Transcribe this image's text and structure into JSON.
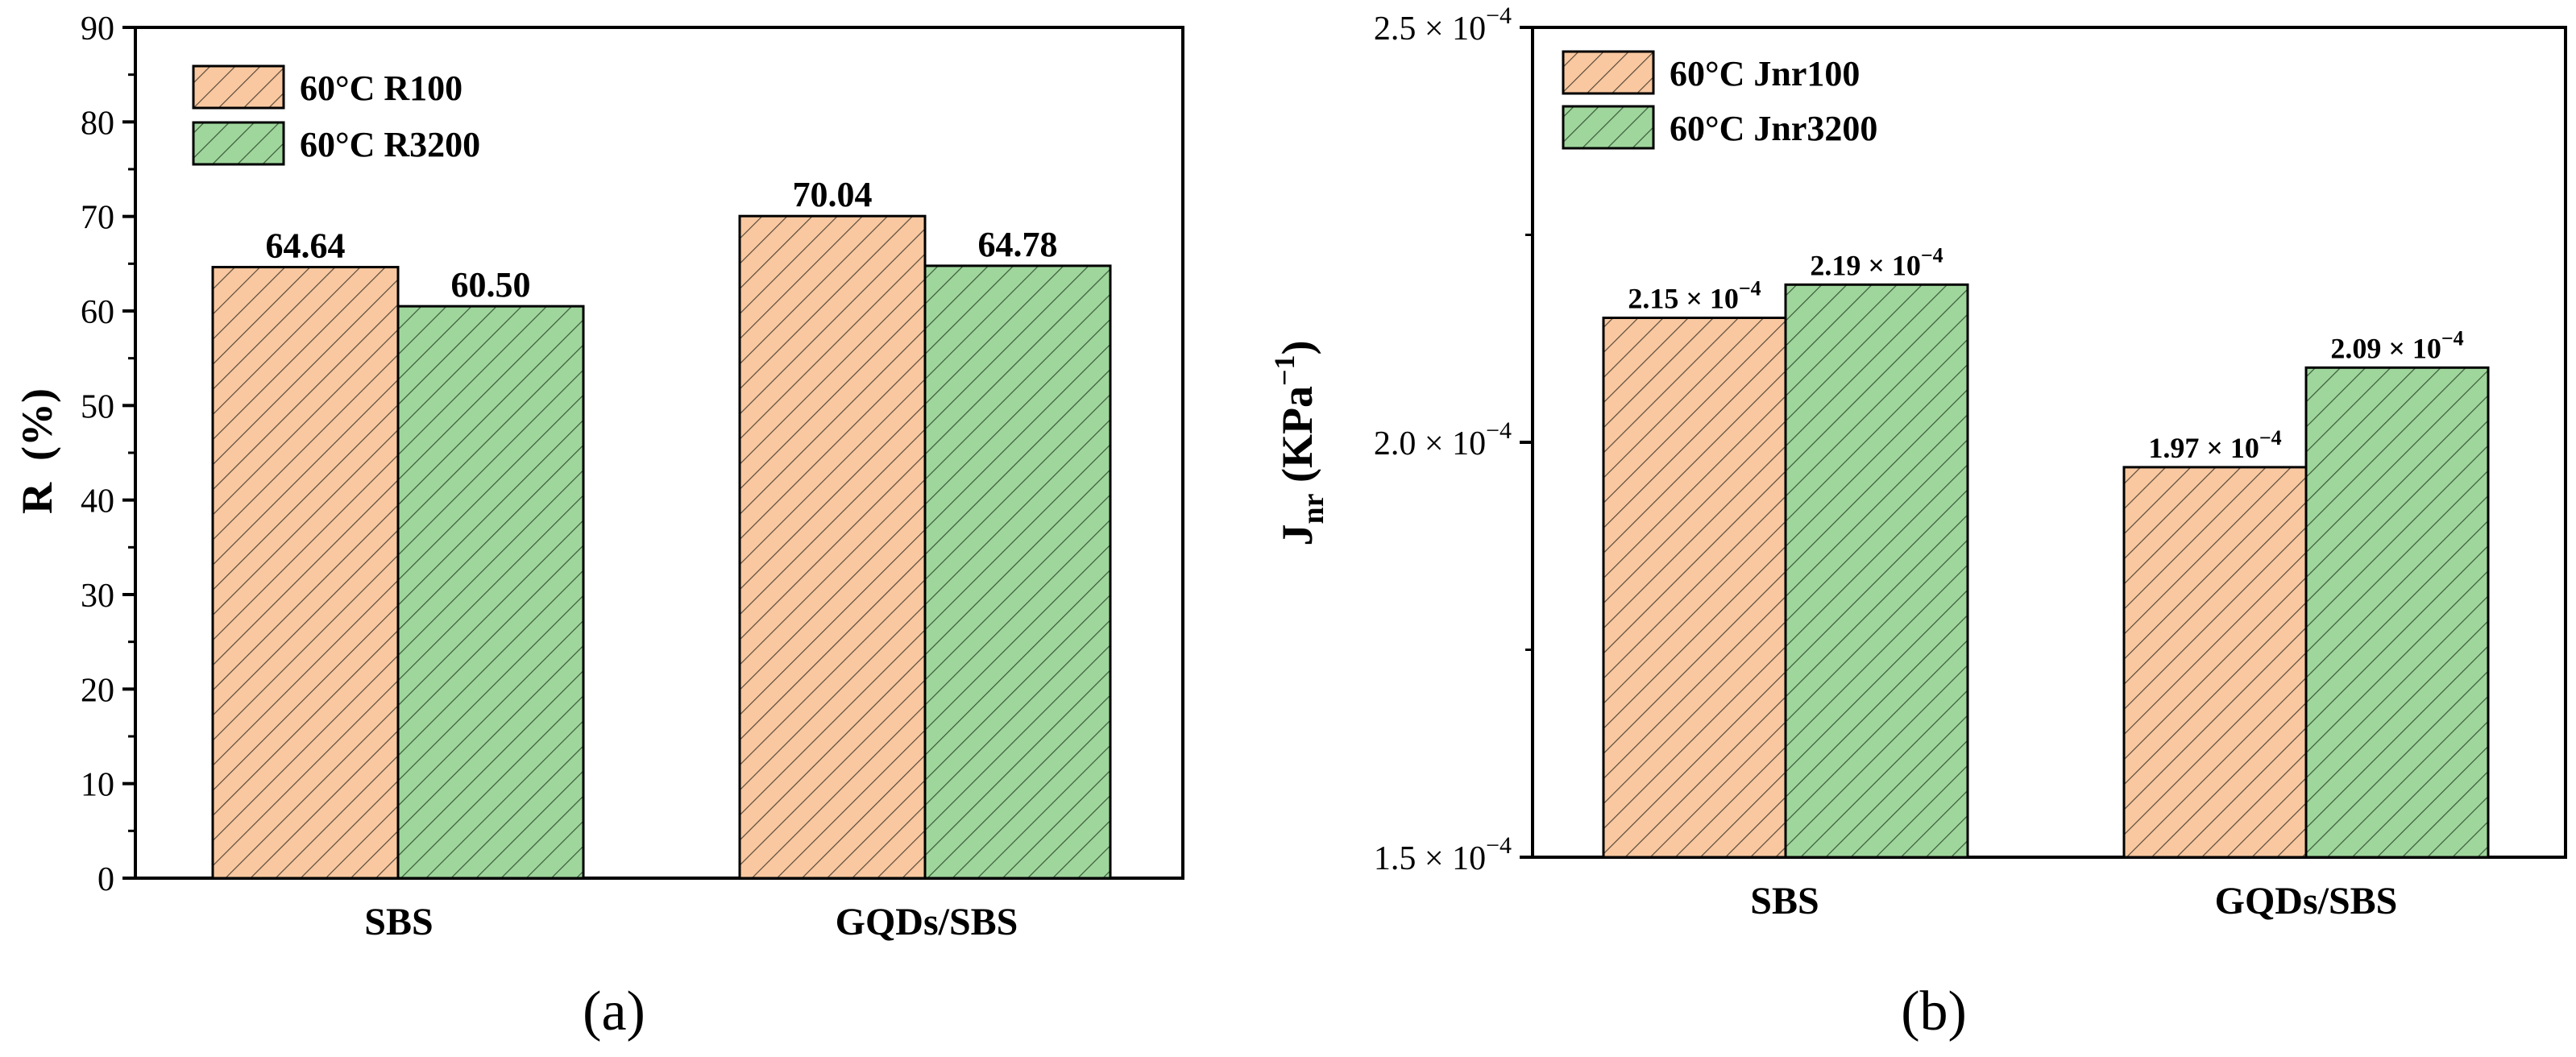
{
  "chart_data": [
    {
      "type": "bar",
      "panel": "(a)",
      "categories": [
        "SBS",
        "GQDs/SBS"
      ],
      "series": [
        {
          "name": "60°C R100",
          "values": [
            64.64,
            70.04
          ],
          "labels": [
            "64.64",
            "70.04"
          ],
          "color": "#f9c8a0"
        },
        {
          "name": "60°C R3200",
          "values": [
            60.5,
            64.78
          ],
          "labels": [
            "60.50",
            "64.78"
          ],
          "color": "#9fd69c"
        }
      ],
      "ylabel": "R  (%)",
      "ylim": [
        0,
        90
      ],
      "yticks": [
        "0",
        "10",
        "20",
        "30",
        "40",
        "50",
        "60",
        "70",
        "80",
        "90"
      ],
      "legend": "top-left"
    },
    {
      "type": "bar",
      "panel": "(b)",
      "categories": [
        "SBS",
        "GQDs/SBS"
      ],
      "series": [
        {
          "name": "60°C Jnr100",
          "values": [
            0.000215,
            0.000197
          ],
          "labels": [
            "2.15 × 10",
            "1.97 × 10"
          ],
          "color": "#f9c8a0"
        },
        {
          "name": "60°C Jnr3200",
          "values": [
            0.000219,
            0.000209
          ],
          "labels": [
            "2.19 × 10",
            "2.09 × 10"
          ],
          "color": "#9fd69c"
        }
      ],
      "label_exponent": "−4",
      "ylabel": "J",
      "ylabel_sub": "nr",
      "ylabel_unit": "(KPa",
      "ylabel_unit_sup": "−1",
      "ylabel_close": ")",
      "ylim": [
        0.00015,
        0.00025
      ],
      "yticks": [
        "1.5 × 10",
        "2.0 × 10",
        "2.5 × 10"
      ],
      "tick_exponent": "−4",
      "legend": "top-left"
    }
  ],
  "colors": {
    "orange": "#f9c8a0",
    "green": "#9fd69c",
    "axis": "#000000"
  }
}
